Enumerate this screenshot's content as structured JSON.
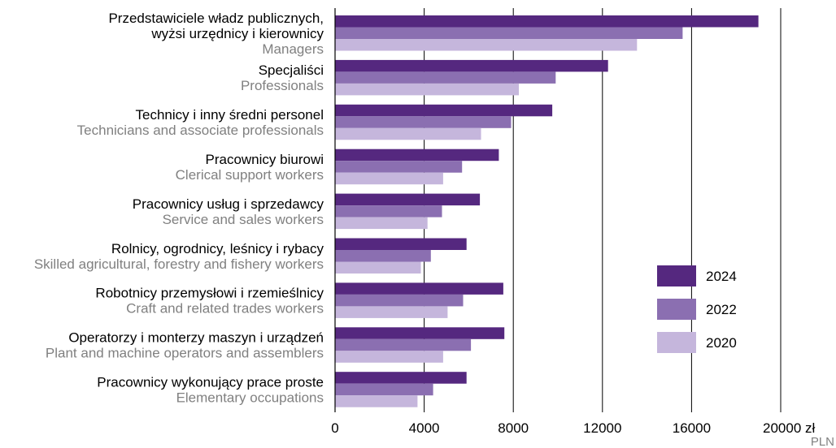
{
  "chart_data": {
    "type": "bar",
    "orientation": "horizontal",
    "categories": [
      {
        "pl": [
          "Przedstawiciele władz publicznych,",
          "wyżsi urzędnicy i kierownicy"
        ],
        "en": "Managers"
      },
      {
        "pl": [
          "Specjaliści"
        ],
        "en": "Professionals"
      },
      {
        "pl": [
          "Technicy i inny średni personel"
        ],
        "en": "Technicians and associate professionals"
      },
      {
        "pl": [
          "Pracownicy biurowi"
        ],
        "en": "Clerical support workers"
      },
      {
        "pl": [
          "Pracownicy usług i sprzedawcy"
        ],
        "en": "Service and sales workers"
      },
      {
        "pl": [
          "Rolnicy, ogrodnicy, leśnicy i rybacy"
        ],
        "en": "Skilled agricultural, forestry and fishery workers"
      },
      {
        "pl": [
          "Robotnicy przemysłowi i rzemieślnicy"
        ],
        "en": "Craft and related trades workers"
      },
      {
        "pl": [
          "Operatorzy i monterzy maszyn i urządzeń"
        ],
        "en": "Plant and machine operators and assemblers"
      },
      {
        "pl": [
          "Pracownicy wykonujący prace proste"
        ],
        "en": "Elementary occupations"
      }
    ],
    "series": [
      {
        "name": "2024",
        "color": "#55287f",
        "values": [
          19000,
          12250,
          9750,
          7350,
          6500,
          5900,
          7550,
          7600,
          5900
        ]
      },
      {
        "name": "2022",
        "color": "#8b6fb1",
        "values": [
          15600,
          9900,
          7900,
          5700,
          4800,
          4300,
          5750,
          6100,
          4400
        ]
      },
      {
        "name": "2020",
        "color": "#c5b6dc",
        "values": [
          13550,
          8250,
          6550,
          4850,
          4150,
          3850,
          5050,
          4850,
          3700
        ]
      }
    ],
    "xlim": [
      0,
      20000
    ],
    "xticks": [
      0,
      4000,
      8000,
      12000,
      16000,
      20000
    ],
    "xtick_labels": [
      "0",
      "4000",
      "8000",
      "12000",
      "16000",
      "20000 zł"
    ],
    "x_unit_en": "PLN",
    "grid": "vertical",
    "legend_position": "bottom-right"
  }
}
